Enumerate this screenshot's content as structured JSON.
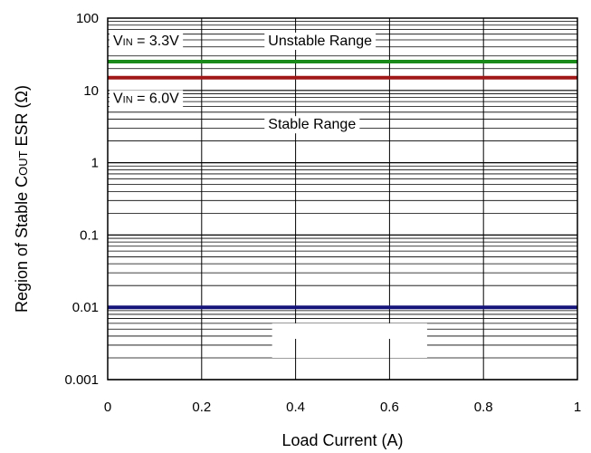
{
  "chart_data": {
    "type": "line",
    "title": "",
    "xlabel": "Load Current (A)",
    "ylabel": {
      "prefix": "Region of Stable C",
      "subscript": "OUT",
      "suffix": " ESR (Ω)"
    },
    "xlim": [
      0,
      1
    ],
    "ylim": [
      0.001,
      100
    ],
    "yscale": "log",
    "grid": true,
    "x_ticks": [
      "0",
      "0.2",
      "0.4",
      "0.6",
      "0.8",
      "1"
    ],
    "y_ticks": [
      "0.001",
      "0.01",
      "0.1",
      "1",
      "10",
      "100"
    ],
    "series": [
      {
        "x": [
          0,
          1
        ],
        "y": [
          25,
          25
        ],
        "color": "#1a8a1a"
      },
      {
        "x": [
          0,
          1
        ],
        "y": [
          15,
          15
        ],
        "color": "#a01818"
      },
      {
        "x": [
          0,
          1
        ],
        "y": [
          0.01,
          0.01
        ],
        "color": "#14147a"
      }
    ],
    "annotations": [
      {
        "parts": [
          {
            "t": "V",
            "sub": false
          },
          {
            "t": "IN",
            "sub": true
          },
          {
            "t": " = 3.3V",
            "sub": false
          }
        ],
        "x": 0.0,
        "y": 50
      },
      {
        "parts": [
          {
            "t": "Unstable Range",
            "sub": false
          }
        ],
        "x": 0.33,
        "y": 50
      },
      {
        "parts": [
          {
            "t": "V",
            "sub": false
          },
          {
            "t": "IN",
            "sub": true
          },
          {
            "t": " = 6.0V",
            "sub": false
          }
        ],
        "x": 0.0,
        "y": 8
      },
      {
        "parts": [
          {
            "t": "Stable Range",
            "sub": false
          }
        ],
        "x": 0.33,
        "y": 3.5
      }
    ]
  }
}
